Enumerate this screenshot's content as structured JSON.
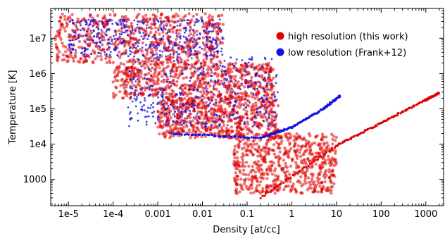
{
  "chart_data": {
    "type": "scatter",
    "title": "",
    "xlabel": "Density [at/cc]",
    "ylabel": "Temperature [K]",
    "xscale": "log",
    "yscale": "log",
    "xlim": [
      4e-06,
      2500
    ],
    "ylim": [
      180,
      70000000
    ],
    "x_ticks": [
      1e-05,
      0.0001,
      0.001,
      0.01,
      0.1,
      1,
      10,
      100,
      1000
    ],
    "x_tick_labels": [
      "1e-5",
      "1e-4",
      "0.001",
      "0.01",
      "0.1",
      "1",
      "10",
      "100",
      "1000"
    ],
    "y_ticks": [
      1000,
      10000,
      100000,
      1000000,
      10000000
    ],
    "y_tick_labels": [
      "1000",
      "1e4",
      "1e5",
      "1e6",
      "1e7"
    ],
    "grid": false,
    "legend_position": "top-right",
    "series": [
      {
        "name": "high resolution (this work)",
        "color": "#e00000",
        "regions": [
          {
            "n_range": [
              5e-06,
              0.03
            ],
            "T_range": [
              2000000,
              50000000
            ]
          },
          {
            "n_range": [
              0.0001,
              0.4
            ],
            "T_range": [
              200000,
              2000000
            ]
          },
          {
            "n_range": [
              0.001,
              0.5
            ],
            "T_range": [
              15000,
              200000
            ]
          },
          {
            "n_range": [
              0.05,
              10
            ],
            "T_range": [
              400,
              20000
            ]
          }
        ],
        "branch_points": [
          [
            0.2,
            300
          ],
          [
            10,
            9000
          ],
          [
            100,
            40000
          ],
          [
            1000,
            180000
          ],
          [
            2000,
            280000
          ]
        ]
      },
      {
        "name": "low resolution (Frank+12)",
        "color": "#1010e0",
        "regions": [
          {
            "n_range": [
              1e-05,
              0.03
            ],
            "T_range": [
              3000000,
              35000000
            ]
          },
          {
            "n_range": [
              0.0002,
              0.5
            ],
            "T_range": [
              30000,
              3000000
            ]
          }
        ],
        "branch_points": [
          [
            0.002,
            20000
          ],
          [
            0.2,
            15000
          ],
          [
            1,
            30000
          ],
          [
            5,
            100000
          ],
          [
            12,
            230000
          ]
        ]
      }
    ]
  }
}
